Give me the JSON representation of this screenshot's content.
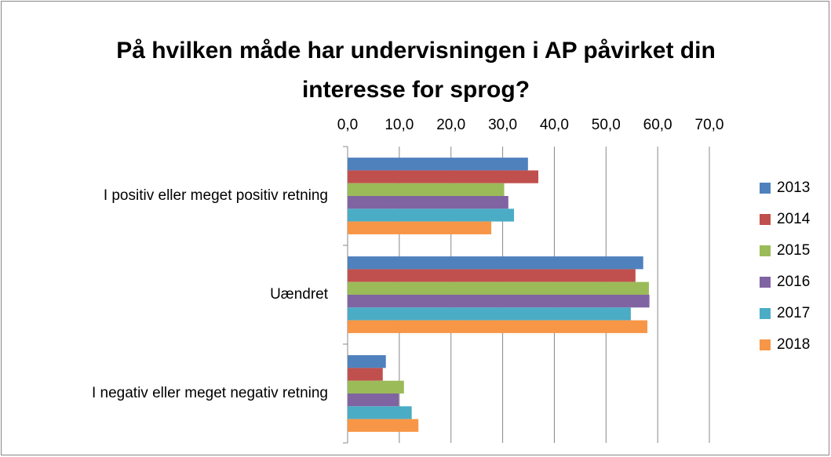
{
  "chart_data": {
    "type": "hbar",
    "title": "På hvilken måde har undervisningen i AP påvirket din interesse for sprog?",
    "categories": [
      "I positiv eller meget positiv retning",
      "Uændret",
      "I negativ eller meget negativ retning"
    ],
    "series": [
      {
        "name": "2013",
        "color": "#4f81bd",
        "values": [
          34.9,
          57.2,
          7.4
        ]
      },
      {
        "name": "2014",
        "color": "#c0504d",
        "values": [
          36.9,
          55.7,
          6.8
        ]
      },
      {
        "name": "2015",
        "color": "#9bbb59",
        "values": [
          30.3,
          58.3,
          10.9
        ]
      },
      {
        "name": "2016",
        "color": "#8064a2",
        "values": [
          31.1,
          58.4,
          9.9
        ]
      },
      {
        "name": "2017",
        "color": "#4bacc6",
        "values": [
          32.2,
          54.8,
          12.4
        ]
      },
      {
        "name": "2018",
        "color": "#f79646",
        "values": [
          27.8,
          58.0,
          13.7
        ]
      }
    ],
    "xlim": [
      0,
      70
    ],
    "xticks": [
      {
        "value": 0,
        "label": "0,0"
      },
      {
        "value": 10,
        "label": "10,0"
      },
      {
        "value": 20,
        "label": "20,0"
      },
      {
        "value": 30,
        "label": "30,0"
      },
      {
        "value": 40,
        "label": "40,0"
      },
      {
        "value": 50,
        "label": "50,0"
      },
      {
        "value": 60,
        "label": "60,0"
      },
      {
        "value": 70,
        "label": "70,0"
      }
    ],
    "grid": true,
    "legend": "right"
  }
}
